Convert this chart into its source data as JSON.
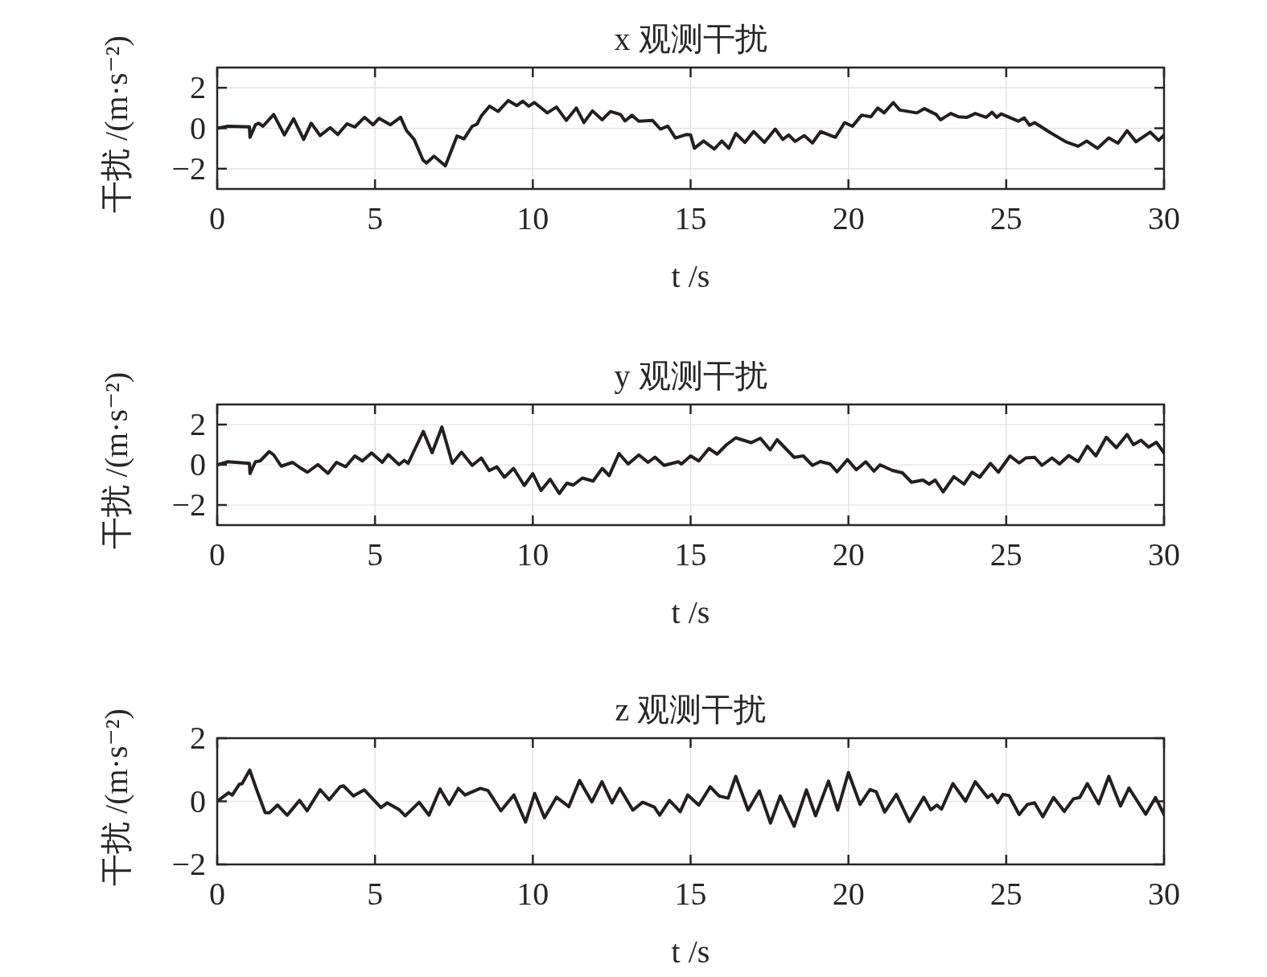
{
  "chart_data": [
    {
      "type": "line",
      "title": "x 观测干扰",
      "xlabel": "t /s",
      "ylabel": "干扰 /(m·s⁻²)",
      "xlim": [
        0,
        30
      ],
      "xticks": [
        0,
        5,
        10,
        15,
        20,
        25,
        30
      ],
      "ylim": [
        -3,
        3
      ],
      "yticks": [
        -2,
        0,
        2
      ],
      "grid": true,
      "series": [
        {
          "color": "#231f20",
          "x": [
            0,
            0.34,
            1.02,
            1.04,
            1.21,
            1.31,
            1.45,
            1.79,
            2.13,
            2.42,
            2.74,
            2.98,
            3.26,
            3.58,
            3.82,
            4.11,
            4.36,
            4.67,
            4.94,
            5.13,
            5.49,
            5.81,
            6.0,
            6.24,
            6.52,
            6.63,
            6.87,
            7.23,
            7.6,
            7.82,
            8.08,
            8.23,
            8.37,
            8.63,
            8.9,
            9.22,
            9.49,
            9.68,
            9.87,
            10.05,
            10.46,
            10.75,
            11.06,
            11.38,
            11.62,
            11.89,
            12.2,
            12.46,
            12.78,
            12.92,
            13.14,
            13.36,
            13.79,
            14.04,
            14.28,
            14.52,
            14.86,
            15.0,
            15.12,
            15.41,
            15.75,
            15.99,
            16.21,
            16.43,
            16.72,
            17.0,
            17.34,
            17.68,
            17.92,
            18.11,
            18.31,
            18.6,
            18.86,
            19.12,
            19.59,
            19.88,
            20.13,
            20.42,
            20.71,
            20.93,
            21.13,
            21.42,
            21.63,
            22.17,
            22.41,
            22.78,
            22.92,
            23.24,
            23.48,
            23.76,
            24.02,
            24.36,
            24.55,
            24.7,
            24.84,
            25.38,
            25.57,
            25.74,
            25.9,
            26.4,
            26.89,
            27.28,
            27.55,
            27.89,
            28.25,
            28.54,
            28.83,
            29.11,
            29.56,
            29.83,
            30.0
          ],
          "values": [
            0,
            0.1,
            0.07,
            -0.45,
            0.17,
            0.25,
            0.1,
            0.68,
            -0.33,
            0.47,
            -0.55,
            0.25,
            -0.36,
            0.03,
            -0.31,
            0.22,
            0.06,
            0.54,
            0.17,
            0.49,
            0.17,
            0.54,
            -0.12,
            -0.55,
            -1.57,
            -1.72,
            -1.38,
            -1.86,
            -0.38,
            -0.52,
            0.1,
            0.2,
            0.61,
            1.09,
            0.83,
            1.37,
            1.12,
            1.34,
            1.09,
            1.27,
            0.76,
            1.05,
            0.39,
            1.0,
            0.28,
            0.86,
            0.42,
            0.83,
            0.68,
            0.36,
            0.64,
            0.35,
            0.39,
            -0.04,
            0.1,
            -0.48,
            -0.31,
            -0.33,
            -0.99,
            -0.63,
            -1.03,
            -0.63,
            -0.99,
            -0.26,
            -0.7,
            -0.16,
            -0.7,
            -0.04,
            -0.55,
            -0.33,
            -0.65,
            -0.36,
            -0.73,
            -0.16,
            -0.45,
            0.28,
            0.1,
            0.65,
            0.57,
            1.0,
            0.76,
            1.27,
            0.9,
            0.76,
            0.97,
            0.68,
            0.42,
            0.73,
            0.57,
            0.54,
            0.73,
            0.54,
            0.79,
            0.54,
            0.71,
            0.35,
            0.51,
            0.15,
            0.28,
            -0.22,
            -0.67,
            -0.89,
            -0.63,
            -0.99,
            -0.48,
            -0.74,
            -0.12,
            -0.67,
            -0.19,
            -0.6,
            -0.33
          ]
        }
      ]
    },
    {
      "type": "line",
      "title": "y 观测干扰",
      "xlabel": "t /s",
      "ylabel": "干扰 /(m·s⁻²)",
      "xlim": [
        0,
        30
      ],
      "xticks": [
        0,
        5,
        10,
        15,
        20,
        25,
        30
      ],
      "ylim": [
        -3,
        3
      ],
      "yticks": [
        -2,
        0,
        2
      ],
      "grid": true,
      "series": [
        {
          "color": "#231f20",
          "x": [
            0,
            0.34,
            1.02,
            1.04,
            1.21,
            1.36,
            1.65,
            1.79,
            2.03,
            2.39,
            2.61,
            2.86,
            3.19,
            3.51,
            3.78,
            4.07,
            4.36,
            4.6,
            4.89,
            5.23,
            5.42,
            5.76,
            5.93,
            6.05,
            6.53,
            6.81,
            7.12,
            7.45,
            7.74,
            8.08,
            8.37,
            8.62,
            8.86,
            9.1,
            9.39,
            9.73,
            10.0,
            10.26,
            10.55,
            10.84,
            11.08,
            11.28,
            11.57,
            11.91,
            12.2,
            12.42,
            12.73,
            13.02,
            13.36,
            13.65,
            13.87,
            14.16,
            14.61,
            14.71,
            15.0,
            15.26,
            15.58,
            15.84,
            16.14,
            16.43,
            16.92,
            17.21,
            17.52,
            17.74,
            18.28,
            18.57,
            18.86,
            19.11,
            19.42,
            19.64,
            19.97,
            20.25,
            20.55,
            20.81,
            21.0,
            21.39,
            21.71,
            22.0,
            22.36,
            22.56,
            22.75,
            23.0,
            23.34,
            23.66,
            23.92,
            24.16,
            24.5,
            24.75,
            25.12,
            25.41,
            25.62,
            25.9,
            26.13,
            26.45,
            26.69,
            26.98,
            27.28,
            27.57,
            27.84,
            28.17,
            28.49,
            28.83,
            29.03,
            29.27,
            29.51,
            29.76,
            30.0
          ],
          "values": [
            0,
            0.15,
            0.07,
            -0.44,
            0.15,
            0.19,
            0.66,
            0.49,
            -0.07,
            0.12,
            -0.13,
            -0.37,
            0.01,
            -0.43,
            0.12,
            -0.1,
            0.44,
            0.19,
            0.59,
            0.12,
            0.51,
            0.01,
            0.22,
            0.07,
            1.66,
            0.6,
            1.88,
            0.07,
            0.63,
            -0.03,
            0.34,
            -0.29,
            -0.1,
            -0.62,
            -0.18,
            -1.03,
            -0.44,
            -1.28,
            -0.72,
            -1.43,
            -0.91,
            -1.01,
            -0.66,
            -0.81,
            -0.18,
            -0.54,
            0.56,
            0.04,
            0.49,
            0.12,
            0.38,
            -0.03,
            0.15,
            0.04,
            0.44,
            0.19,
            0.81,
            0.53,
            1.0,
            1.34,
            1.1,
            1.32,
            0.74,
            1.25,
            0.37,
            0.44,
            -0.03,
            0.16,
            0.04,
            -0.35,
            0.26,
            -0.25,
            0.15,
            -0.32,
            0.0,
            -0.28,
            -0.4,
            -0.87,
            -0.76,
            -0.96,
            -0.76,
            -1.35,
            -0.59,
            -0.96,
            -0.37,
            -0.62,
            0.07,
            -0.37,
            0.44,
            0.09,
            0.34,
            0.37,
            -0.03,
            0.34,
            0.04,
            0.46,
            0.16,
            0.93,
            0.44,
            1.37,
            0.85,
            1.51,
            1.0,
            1.22,
            0.88,
            1.12,
            0.59
          ]
        }
      ]
    },
    {
      "type": "line",
      "title": "z 观测干扰",
      "xlabel": "t /s",
      "ylabel": "干扰 /(m·s⁻²)",
      "xlim": [
        0,
        30
      ],
      "xticks": [
        0,
        5,
        10,
        15,
        20,
        25,
        30
      ],
      "ylim": [
        -2,
        2
      ],
      "yticks": [
        -2,
        0,
        2
      ],
      "grid": true,
      "series": [
        {
          "color": "#231f20",
          "x": [
            0,
            0.36,
            0.48,
            0.7,
            0.79,
            1.03,
            1.26,
            1.52,
            1.66,
            1.91,
            2.22,
            2.46,
            2.61,
            2.85,
            3.26,
            3.55,
            3.89,
            4.0,
            4.32,
            4.66,
            5.19,
            5.39,
            5.77,
            5.96,
            6.4,
            6.71,
            7.06,
            7.35,
            7.64,
            7.85,
            8.34,
            8.58,
            8.99,
            9.4,
            9.77,
            10.06,
            10.37,
            10.75,
            11.14,
            11.48,
            11.87,
            12.19,
            12.51,
            12.76,
            13.17,
            13.48,
            13.85,
            14.02,
            14.33,
            14.67,
            14.91,
            15.26,
            15.62,
            15.9,
            16.19,
            16.43,
            16.82,
            17.18,
            17.53,
            17.84,
            18.28,
            18.67,
            18.96,
            19.37,
            19.66,
            20.0,
            20.37,
            20.68,
            20.88,
            21.15,
            21.52,
            21.93,
            22.39,
            22.61,
            22.8,
            22.95,
            23.31,
            23.71,
            24.02,
            24.41,
            24.55,
            24.73,
            24.9,
            25.09,
            25.41,
            25.67,
            25.9,
            26.16,
            26.5,
            26.84,
            27.13,
            27.33,
            27.57,
            27.93,
            28.25,
            28.62,
            28.89,
            29.42,
            29.73,
            30.0
          ],
          "values": [
            0,
            0.27,
            0.2,
            0.54,
            0.56,
            0.99,
            0.34,
            -0.36,
            -0.36,
            -0.12,
            -0.44,
            -0.15,
            0.03,
            -0.3,
            0.37,
            0.05,
            0.46,
            0.49,
            0.17,
            0.36,
            -0.2,
            -0.05,
            -0.27,
            -0.46,
            -0.03,
            -0.44,
            0.39,
            -0.1,
            0.41,
            0.2,
            0.41,
            0.34,
            -0.3,
            0.2,
            -0.66,
            0.25,
            -0.52,
            0.13,
            -0.17,
            0.66,
            -0.02,
            0.62,
            -0.05,
            0.41,
            -0.28,
            -0.03,
            -0.18,
            -0.44,
            0.03,
            -0.33,
            0.2,
            -0.12,
            0.46,
            0.17,
            0.1,
            0.79,
            -0.28,
            0.33,
            -0.69,
            0.17,
            -0.79,
            0.36,
            -0.46,
            0.64,
            -0.28,
            0.91,
            -0.1,
            0.37,
            0.3,
            -0.34,
            0.22,
            -0.64,
            0.13,
            -0.27,
            -0.12,
            -0.25,
            0.56,
            0.0,
            0.62,
            0.12,
            0.22,
            -0.05,
            0.22,
            0.18,
            -0.42,
            -0.1,
            -0.05,
            -0.49,
            0.12,
            -0.32,
            0.08,
            0.12,
            0.56,
            -0.08,
            0.79,
            -0.15,
            0.42,
            -0.41,
            0.12,
            -0.42
          ]
        }
      ]
    }
  ]
}
